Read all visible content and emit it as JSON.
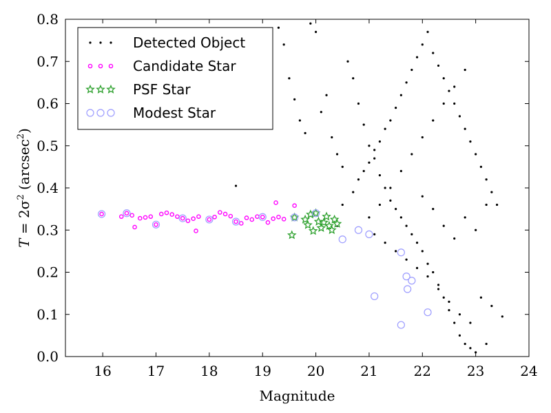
{
  "chart_data": {
    "type": "scatter",
    "title": "",
    "xlabel": "Magnitude",
    "ylabel": "T = 2σ² (arcsec²)",
    "ylabel_parts": {
      "T": "T",
      "eq": " = 2σ",
      "sup": "2",
      "paren_open": " (arcsec",
      "sup2": "2",
      "paren_close": ")"
    },
    "xlim": [
      15.3,
      24
    ],
    "ylim": [
      0.0,
      0.8
    ],
    "xticks": [
      "16",
      "17",
      "18",
      "19",
      "20",
      "21",
      "22",
      "23",
      "24"
    ],
    "yticks": [
      "0.0",
      "0.1",
      "0.2",
      "0.3",
      "0.4",
      "0.5",
      "0.6",
      "0.7",
      "0.8"
    ],
    "legend_position": "top-left",
    "grid": false,
    "series": [
      {
        "name": "Detected Object",
        "marker": "dot",
        "color": "#000000",
        "points": [
          [
            18.5,
            0.405
          ],
          [
            19.3,
            0.78
          ],
          [
            19.4,
            0.74
          ],
          [
            19.5,
            0.66
          ],
          [
            19.6,
            0.61
          ],
          [
            19.7,
            0.56
          ],
          [
            19.8,
            0.53
          ],
          [
            19.9,
            0.79
          ],
          [
            20.0,
            0.77
          ],
          [
            20.1,
            0.58
          ],
          [
            20.2,
            0.62
          ],
          [
            20.3,
            0.52
          ],
          [
            20.4,
            0.48
          ],
          [
            20.5,
            0.45
          ],
          [
            20.6,
            0.7
          ],
          [
            20.7,
            0.66
          ],
          [
            20.8,
            0.6
          ],
          [
            20.9,
            0.55
          ],
          [
            21.0,
            0.5
          ],
          [
            21.1,
            0.47
          ],
          [
            21.2,
            0.43
          ],
          [
            21.3,
            0.4
          ],
          [
            21.4,
            0.37
          ],
          [
            21.5,
            0.35
          ],
          [
            21.6,
            0.33
          ],
          [
            21.7,
            0.31
          ],
          [
            21.8,
            0.29
          ],
          [
            21.9,
            0.27
          ],
          [
            22.0,
            0.25
          ],
          [
            22.1,
            0.22
          ],
          [
            22.2,
            0.2
          ],
          [
            22.3,
            0.17
          ],
          [
            22.4,
            0.14
          ],
          [
            22.5,
            0.11
          ],
          [
            22.6,
            0.08
          ],
          [
            22.7,
            0.05
          ],
          [
            22.8,
            0.03
          ],
          [
            22.9,
            0.02
          ],
          [
            23.0,
            0.01
          ],
          [
            23.2,
            0.03
          ],
          [
            20.4,
            0.31
          ],
          [
            20.5,
            0.36
          ],
          [
            20.7,
            0.39
          ],
          [
            20.8,
            0.42
          ],
          [
            20.9,
            0.44
          ],
          [
            21.0,
            0.46
          ],
          [
            21.1,
            0.49
          ],
          [
            21.2,
            0.51
          ],
          [
            21.3,
            0.54
          ],
          [
            21.4,
            0.56
          ],
          [
            21.5,
            0.59
          ],
          [
            21.6,
            0.62
          ],
          [
            21.7,
            0.65
          ],
          [
            21.8,
            0.68
          ],
          [
            21.9,
            0.71
          ],
          [
            22.0,
            0.74
          ],
          [
            22.1,
            0.77
          ],
          [
            22.2,
            0.72
          ],
          [
            22.3,
            0.69
          ],
          [
            22.4,
            0.66
          ],
          [
            22.5,
            0.63
          ],
          [
            22.6,
            0.6
          ],
          [
            22.7,
            0.57
          ],
          [
            22.8,
            0.54
          ],
          [
            22.9,
            0.51
          ],
          [
            23.0,
            0.48
          ],
          [
            23.1,
            0.45
          ],
          [
            23.2,
            0.42
          ],
          [
            23.3,
            0.39
          ],
          [
            23.4,
            0.36
          ],
          [
            21.0,
            0.33
          ],
          [
            21.2,
            0.36
          ],
          [
            21.4,
            0.4
          ],
          [
            21.6,
            0.44
          ],
          [
            21.8,
            0.48
          ],
          [
            22.0,
            0.52
          ],
          [
            22.2,
            0.56
          ],
          [
            22.4,
            0.6
          ],
          [
            22.6,
            0.64
          ],
          [
            22.8,
            0.68
          ],
          [
            21.1,
            0.29
          ],
          [
            21.3,
            0.27
          ],
          [
            21.5,
            0.25
          ],
          [
            21.7,
            0.23
          ],
          [
            21.9,
            0.21
          ],
          [
            22.1,
            0.19
          ],
          [
            22.3,
            0.16
          ],
          [
            22.5,
            0.13
          ],
          [
            22.7,
            0.1
          ],
          [
            22.9,
            0.08
          ],
          [
            23.1,
            0.14
          ],
          [
            23.3,
            0.12
          ],
          [
            23.5,
            0.095
          ],
          [
            23.2,
            0.36
          ],
          [
            23.0,
            0.3
          ],
          [
            22.8,
            0.33
          ],
          [
            22.6,
            0.28
          ],
          [
            22.4,
            0.31
          ],
          [
            22.2,
            0.35
          ],
          [
            22.0,
            0.38
          ]
        ]
      },
      {
        "name": "Candidate Star",
        "marker": "ring-small",
        "color": "#ff00ff",
        "points": [
          [
            15.98,
            0.338
          ],
          [
            16.35,
            0.332
          ],
          [
            16.45,
            0.34
          ],
          [
            16.55,
            0.335
          ],
          [
            16.6,
            0.307
          ],
          [
            16.7,
            0.328
          ],
          [
            16.8,
            0.33
          ],
          [
            16.9,
            0.332
          ],
          [
            17.0,
            0.313
          ],
          [
            17.1,
            0.338
          ],
          [
            17.2,
            0.341
          ],
          [
            17.3,
            0.337
          ],
          [
            17.4,
            0.332
          ],
          [
            17.5,
            0.328
          ],
          [
            17.6,
            0.322
          ],
          [
            17.7,
            0.327
          ],
          [
            17.75,
            0.298
          ],
          [
            17.8,
            0.332
          ],
          [
            18.0,
            0.325
          ],
          [
            18.1,
            0.331
          ],
          [
            18.2,
            0.342
          ],
          [
            18.3,
            0.338
          ],
          [
            18.4,
            0.333
          ],
          [
            18.5,
            0.32
          ],
          [
            18.6,
            0.316
          ],
          [
            18.7,
            0.329
          ],
          [
            18.8,
            0.325
          ],
          [
            18.9,
            0.332
          ],
          [
            19.0,
            0.331
          ],
          [
            19.1,
            0.318
          ],
          [
            19.2,
            0.327
          ],
          [
            19.25,
            0.365
          ],
          [
            19.3,
            0.331
          ],
          [
            19.4,
            0.326
          ],
          [
            19.6,
            0.358
          ]
        ]
      },
      {
        "name": "PSF Star",
        "marker": "star",
        "color": "#2ca02c",
        "points": [
          [
            19.55,
            0.288
          ],
          [
            19.6,
            0.33
          ],
          [
            19.8,
            0.325
          ],
          [
            19.85,
            0.312
          ],
          [
            19.9,
            0.337
          ],
          [
            19.95,
            0.298
          ],
          [
            20.0,
            0.34
          ],
          [
            20.05,
            0.32
          ],
          [
            20.1,
            0.305
          ],
          [
            20.15,
            0.318
          ],
          [
            20.2,
            0.332
          ],
          [
            20.25,
            0.31
          ],
          [
            20.3,
            0.3
          ],
          [
            20.35,
            0.325
          ],
          [
            20.4,
            0.315
          ]
        ]
      },
      {
        "name": "Modest Star",
        "marker": "ring-large",
        "color": "#9b9bff",
        "points": [
          [
            15.98,
            0.338
          ],
          [
            16.45,
            0.34
          ],
          [
            17.0,
            0.313
          ],
          [
            17.5,
            0.328
          ],
          [
            18.0,
            0.325
          ],
          [
            18.5,
            0.32
          ],
          [
            19.0,
            0.331
          ],
          [
            19.6,
            0.33
          ],
          [
            20.0,
            0.34
          ],
          [
            20.5,
            0.278
          ],
          [
            20.8,
            0.3
          ],
          [
            21.0,
            0.29
          ],
          [
            21.1,
            0.143
          ],
          [
            21.6,
            0.247
          ],
          [
            21.7,
            0.19
          ],
          [
            21.72,
            0.16
          ],
          [
            21.8,
            0.18
          ],
          [
            21.6,
            0.075
          ],
          [
            22.1,
            0.105
          ]
        ]
      }
    ]
  }
}
